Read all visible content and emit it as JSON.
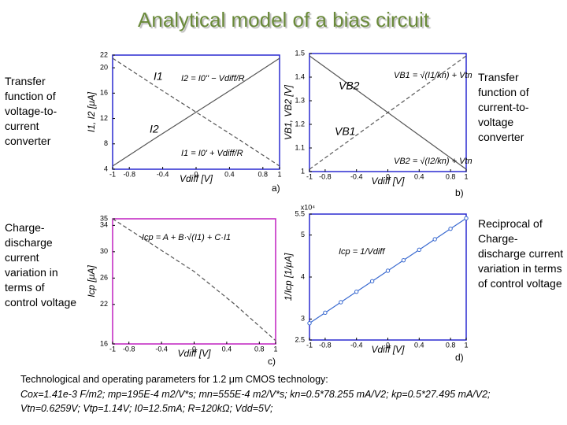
{
  "title": "Analytical model of a bias circuit",
  "side_notes": [
    "Transfer function of voltage-to-current converter",
    "Transfer function of current-to-voltage converter",
    "Charge-discharge current variation in terms of control voltage",
    "Reciprocal of Charge-discharge current variation in terms of control voltage"
  ],
  "footer": [
    "Technological and operating parameters for 1.2 μm CMOS technology:",
    "Cox=1.41e-3 F/m2; mp=195E-4 m2/V*s; mn=555E-4 m2/V*s; kn=0.5*78.255 mA/V2; kp=0.5*27.495 mA/V2;",
    "Vtn=0.6259V; Vtp=1.14V; I0=12.5mA; R=120kΩ; Vdd=5V;"
  ],
  "chart_data": [
    {
      "type": "line",
      "panel_label": "a)",
      "xlabel": "Vdiff [V]",
      "ylabel": "I1, I2 [μA]",
      "frame_color": "#2a2ad0",
      "xlim": [
        -1,
        1
      ],
      "ylim": [
        4,
        22
      ],
      "xticks": [
        -1,
        -0.8,
        -0.4,
        0,
        0.4,
        0.8,
        1
      ],
      "yticks": [
        4,
        8,
        12,
        16,
        20,
        22
      ],
      "x": [
        -1,
        -0.5,
        0,
        0.5,
        1
      ],
      "series": [
        {
          "name": "I1",
          "color": "#555555",
          "linestyle": "solid",
          "values": [
            4.5,
            8.8,
            13,
            17.2,
            21.5
          ]
        },
        {
          "name": "I2",
          "color": "#555555",
          "linestyle": "dashed",
          "values": [
            21.5,
            17.2,
            13,
            8.8,
            4.5
          ]
        }
      ],
      "annotations": [
        "I2 = I0'' − Vdiff/R",
        "I1 = I0' + Vdiff/R"
      ]
    },
    {
      "type": "line",
      "panel_label": "b)",
      "xlabel": "Vdiff [V]",
      "ylabel": "VB1, VB2 [V]",
      "frame_color": "#2a2ad0",
      "xlim": [
        -1,
        1
      ],
      "ylim": [
        1,
        1.5
      ],
      "xticks": [
        -1,
        -0.8,
        -0.4,
        0,
        0.4,
        0.8,
        1
      ],
      "yticks": [
        1,
        1.1,
        1.2,
        1.3,
        1.4,
        1.5
      ],
      "x": [
        -1,
        -0.5,
        0,
        0.5,
        1
      ],
      "series": [
        {
          "name": "VB2",
          "color": "#555555",
          "linestyle": "solid",
          "values": [
            1.49,
            1.37,
            1.25,
            1.13,
            1.01
          ]
        },
        {
          "name": "VB1",
          "color": "#555555",
          "linestyle": "dashed",
          "values": [
            1.01,
            1.13,
            1.25,
            1.37,
            1.49
          ]
        }
      ],
      "annotations": [
        "VB1 = √(I1/kn) + Vtn",
        "VB2 = √(I2/kn) + Vtn"
      ]
    },
    {
      "type": "line",
      "panel_label": "c)",
      "xlabel": "Vdiff [V]",
      "ylabel": "Icp [μA]",
      "frame_color": "#c020c0",
      "xlim": [
        -1,
        1
      ],
      "ylim": [
        16,
        35
      ],
      "xticks": [
        -1,
        -0.8,
        -0.4,
        0,
        0.4,
        0.8,
        1
      ],
      "yticks": [
        16,
        22,
        26,
        30,
        34,
        35
      ],
      "x": [
        -1,
        -0.5,
        0,
        0.5,
        1
      ],
      "series": [
        {
          "name": "Icp",
          "color": "#555555",
          "linestyle": "dashed",
          "values": [
            35,
            31,
            27,
            22,
            16.5
          ]
        }
      ],
      "annotations": [
        "Icp = A + B·√(I1) + C·I1"
      ]
    },
    {
      "type": "line",
      "panel_label": "d)",
      "xlabel": "Vdiff [V]",
      "ylabel": "1/Icp [1/μA]",
      "ylabel_multiplier": "x10⁴",
      "frame_color": "#2a2ad0",
      "xlim": [
        -1,
        1
      ],
      "ylim": [
        2.5,
        5.5
      ],
      "xticks": [
        -1,
        -0.8,
        -0.4,
        0,
        0.4,
        0.8,
        1
      ],
      "yticks": [
        2.5,
        3,
        4,
        5,
        5.5
      ],
      "x": [
        -1,
        -0.8,
        -0.6,
        -0.4,
        -0.2,
        0,
        0.2,
        0.4,
        0.6,
        0.8,
        1
      ],
      "series": [
        {
          "name": "1/Icp",
          "color": "#3a6ad0",
          "linestyle": "solid",
          "marker": "circle",
          "values": [
            2.9,
            3.15,
            3.4,
            3.65,
            3.9,
            4.15,
            4.4,
            4.65,
            4.9,
            5.15,
            5.4
          ]
        }
      ],
      "annotations": [
        "Icp = 1/Vdiff"
      ]
    }
  ]
}
